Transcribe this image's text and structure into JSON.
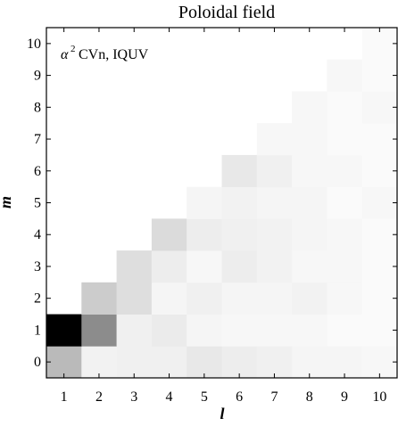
{
  "chart_data": {
    "type": "heatmap",
    "title": "Poloidal field",
    "xlabel": "l",
    "ylabel": "m",
    "annotation": {
      "symbol": "α",
      "superscript": "2",
      "text": "CVn, IQUV"
    },
    "x": [
      1,
      2,
      3,
      4,
      5,
      6,
      7,
      8,
      9,
      10
    ],
    "y": [
      0,
      1,
      2,
      3,
      4,
      5,
      6,
      7,
      8,
      9,
      10
    ],
    "xlim": [
      0.5,
      10.5
    ],
    "ylim": [
      -0.5,
      10.5
    ],
    "colormap": "white-to-black (linear, normalized)",
    "values": [
      [
        0.27,
        0.05,
        0.06,
        0.06,
        0.09,
        0.07,
        0.06,
        0.04,
        0.04,
        0.03
      ],
      [
        1.0,
        0.45,
        0.06,
        0.08,
        0.04,
        0.03,
        0.03,
        0.03,
        0.02,
        0.02
      ],
      [
        null,
        0.2,
        0.13,
        0.04,
        0.06,
        0.04,
        0.04,
        0.05,
        0.03,
        0.02
      ],
      [
        null,
        null,
        0.13,
        0.07,
        0.03,
        0.07,
        0.05,
        0.03,
        0.03,
        0.02
      ],
      [
        null,
        null,
        null,
        0.14,
        0.07,
        0.06,
        0.05,
        0.04,
        0.03,
        0.02
      ],
      [
        null,
        null,
        null,
        null,
        0.04,
        0.05,
        0.04,
        0.04,
        0.02,
        0.03
      ],
      [
        null,
        null,
        null,
        null,
        null,
        0.09,
        0.06,
        0.03,
        0.03,
        0.02
      ],
      [
        null,
        null,
        null,
        null,
        null,
        null,
        0.03,
        0.03,
        0.02,
        0.02
      ],
      [
        null,
        null,
        null,
        null,
        null,
        null,
        null,
        0.03,
        0.02,
        0.03
      ],
      [
        null,
        null,
        null,
        null,
        null,
        null,
        null,
        null,
        0.03,
        0.02
      ],
      [
        null,
        null,
        null,
        null,
        null,
        null,
        null,
        null,
        null,
        0.02
      ]
    ]
  }
}
